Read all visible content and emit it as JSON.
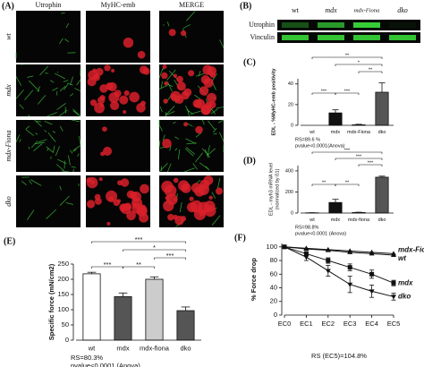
{
  "panel_a": {
    "label": "(A)",
    "columns": [
      "Utrophin",
      "MyHC-emb",
      "MERGE"
    ],
    "rows": [
      "wt",
      "mdx",
      "mdx-Fiona",
      "dko"
    ]
  },
  "panel_b": {
    "label": "(B)",
    "columns": [
      "wt",
      "mdx",
      "mdx-Fiona",
      "dko"
    ],
    "rows": [
      "Utrophin",
      "Vinculin"
    ]
  },
  "chart_data": [
    {
      "type": "bar",
      "title": "(C)",
      "ylabel": "EDL - %MyHC-emb positivity",
      "categories": [
        "wt",
        "mdx",
        "mdx-Fiona",
        "dko"
      ],
      "values": [
        0,
        12,
        0.5,
        32
      ],
      "errors": [
        0,
        3,
        0.5,
        9
      ],
      "colors": [
        "#111111",
        "#111111",
        "#111111",
        "#555555"
      ],
      "ylim": [
        0,
        45
      ],
      "yticks": [
        0,
        20,
        40
      ],
      "annotations": [
        "**",
        "*",
        "**",
        "***",
        "***"
      ],
      "notes": [
        "RS=89.6 %",
        "pvalue<0.0001(Anova)"
      ]
    },
    {
      "type": "bar",
      "title": "(D)",
      "ylabel": "EDL - myh3 mRNA level",
      "ylabel_sub": "(normalized by ß1)",
      "categories": [
        "wt",
        "mdx",
        "mdx-fiona",
        "dko"
      ],
      "values": [
        2,
        100,
        5,
        340
      ],
      "errors": [
        1,
        30,
        3,
        10
      ],
      "colors": [
        "#111111",
        "#111111",
        "#111111",
        "#555555"
      ],
      "ylim": [
        0,
        450
      ],
      "yticks": [
        0,
        200,
        400
      ],
      "annotations": [
        "***",
        "***",
        "***",
        "**",
        "**"
      ],
      "notes": [
        "RS=98.8%",
        "pvalue<0.0001 (Anova)"
      ]
    },
    {
      "type": "bar",
      "title": "(E)",
      "ylabel": "Specific force (mN/cm2)",
      "categories": [
        "wt",
        "mdx",
        "mdx-fiona",
        "dko"
      ],
      "values": [
        218,
        143,
        200,
        97
      ],
      "errors": [
        5,
        12,
        8,
        12
      ],
      "colors": [
        "#ffffff",
        "#555555",
        "#cccccc",
        "#555555"
      ],
      "ylim": [
        0,
        250
      ],
      "yticks": [
        0,
        50,
        100,
        150,
        200,
        250
      ],
      "annotations": [
        "***",
        "*",
        "***",
        "**",
        "***"
      ],
      "notes": [
        "RS=80.3%",
        "pvalue<0.0001 (Anova)"
      ]
    },
    {
      "type": "line",
      "title": "(F)",
      "ylabel": "% Force drop",
      "categories": [
        "EC0",
        "EC1",
        "EC2",
        "EC3",
        "EC4",
        "EC5"
      ],
      "ylim": [
        0,
        105
      ],
      "yticks": [
        0,
        20,
        40,
        60,
        80,
        100
      ],
      "notes": [
        "RS (EC5)=104.8%"
      ],
      "series": [
        {
          "name": "mdx-Fiona",
          "color": "#111111",
          "values": [
            100,
            98,
            96,
            94,
            92,
            90
          ]
        },
        {
          "name": "wt",
          "color": "#111111",
          "values": [
            100,
            97,
            95,
            92,
            90,
            88
          ]
        },
        {
          "name": "mdx",
          "color": "#111111",
          "values": [
            100,
            90,
            80,
            70,
            60,
            47
          ],
          "errors": [
            0,
            3,
            4,
            5,
            6,
            4
          ]
        },
        {
          "name": "dko",
          "color": "#111111",
          "values": [
            100,
            85,
            65,
            45,
            35,
            27
          ],
          "errors": [
            0,
            5,
            8,
            12,
            9,
            5
          ]
        }
      ]
    }
  ]
}
